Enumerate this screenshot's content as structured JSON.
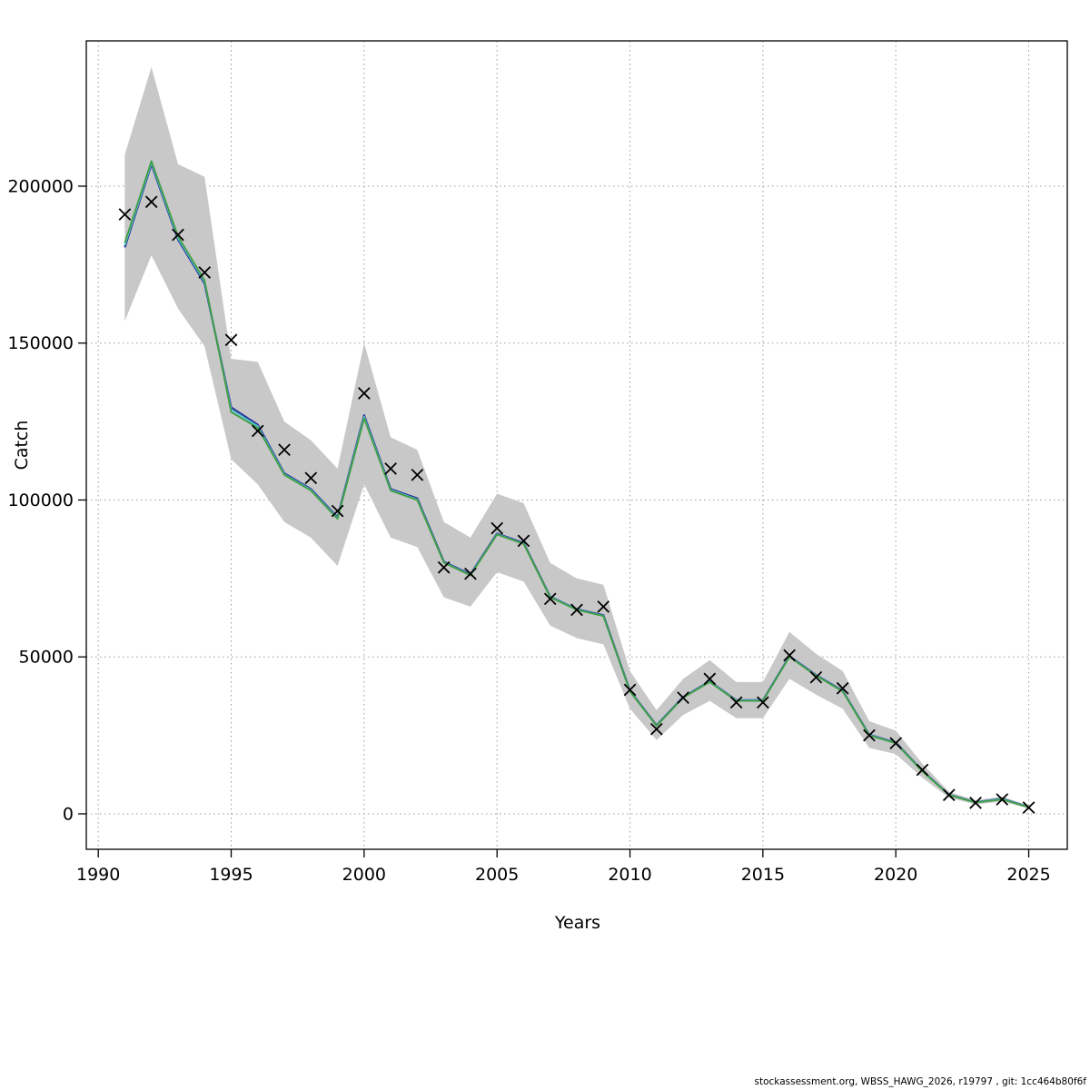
{
  "footer": {
    "text": "stockassessment.org, WBSS_HAWG_2026, r19797 , git: 1cc464b80f6f"
  },
  "chart_data": {
    "type": "line",
    "title": "",
    "xlabel": "Years",
    "ylabel": "Catch",
    "xlim": [
      1989.55,
      2026.45
    ],
    "ylim": [
      -11300,
      246300
    ],
    "x_ticks": [
      1990,
      1995,
      2000,
      2005,
      2010,
      2015,
      2020,
      2025
    ],
    "y_ticks": [
      0,
      50000,
      100000,
      150000,
      200000
    ],
    "grid": true,
    "legend": "none",
    "colors": {
      "grid": "#9a9a9a",
      "axis": "#000000",
      "marker": "#000000"
    },
    "years": [
      1991,
      1992,
      1993,
      1994,
      1995,
      1996,
      1997,
      1998,
      1999,
      2000,
      2001,
      2002,
      2003,
      2004,
      2005,
      2006,
      2007,
      2008,
      2009,
      2010,
      2011,
      2012,
      2013,
      2014,
      2015,
      2016,
      2017,
      2018,
      2019,
      2020,
      2021,
      2022,
      2023,
      2024,
      2025
    ],
    "band": {
      "name": "confidence-band",
      "color": "#c8c8c8",
      "lower": [
        157000,
        178000,
        161000,
        149000,
        113000,
        105000,
        93000,
        88000,
        79000,
        105000,
        88000,
        85000,
        69000,
        66000,
        77000,
        74000,
        60000,
        56000,
        54000,
        33500,
        23500,
        31500,
        36000,
        30500,
        30500,
        43000,
        38000,
        33500,
        21000,
        19000,
        11500,
        5100,
        3000,
        3900,
        1700
      ],
      "upper": [
        210000,
        238000,
        207000,
        203000,
        145000,
        144000,
        125000,
        119000,
        110000,
        150000,
        120000,
        116000,
        93000,
        88000,
        102000,
        99000,
        80000,
        75000,
        73000,
        45500,
        33000,
        43000,
        49000,
        42000,
        42000,
        58000,
        51000,
        45500,
        29500,
        26500,
        16000,
        7000,
        4300,
        5500,
        2600
      ]
    },
    "series": [
      {
        "name": "fit-blue",
        "type": "line",
        "color": "#27359b",
        "width": 2.2,
        "values": [
          180500,
          207000,
          183000,
          169000,
          129500,
          124000,
          108500,
          103500,
          94500,
          127000,
          103500,
          100500,
          80300,
          76300,
          89300,
          86300,
          69200,
          65200,
          63300,
          39200,
          28200,
          37200,
          42200,
          36200,
          36200,
          50200,
          44200,
          39200,
          25200,
          22700,
          13700,
          6100,
          3700,
          4800,
          2200
        ]
      },
      {
        "name": "fit-cyan",
        "type": "line",
        "color": "#5bc8d2",
        "width": 1.8,
        "values": [
          181200,
          207500,
          183500,
          169500,
          128800,
          123500,
          108200,
          103200,
          94200,
          126500,
          103200,
          100200,
          80100,
          76100,
          89100,
          86100,
          69100,
          65100,
          63100,
          39100,
          28100,
          37100,
          42100,
          36100,
          36100,
          50100,
          44100,
          39100,
          25100,
          22600,
          13600,
          6050,
          3650,
          4700,
          2150
        ]
      },
      {
        "name": "fit-green",
        "type": "line",
        "color": "#3f9e43",
        "width": 1.8,
        "values": [
          182000,
          208000,
          184000,
          170000,
          128000,
          123000,
          108000,
          103000,
          94000,
          126000,
          103000,
          100000,
          80000,
          76000,
          89000,
          86000,
          69000,
          65000,
          63000,
          39000,
          28000,
          37000,
          42000,
          36000,
          36000,
          50000,
          44000,
          39000,
          25000,
          22500,
          13500,
          6000,
          3600,
          4600,
          2100
        ]
      },
      {
        "name": "observed-catch",
        "type": "marker",
        "marker": "x",
        "color": "#000000",
        "values": [
          191000,
          195000,
          184500,
          172500,
          151000,
          122000,
          116000,
          107000,
          96500,
          134000,
          110000,
          108000,
          78500,
          76500,
          91000,
          87000,
          68500,
          65000,
          66000,
          39500,
          27000,
          37000,
          43000,
          35500,
          35500,
          50500,
          43500,
          40000,
          25000,
          22500,
          14000,
          6000,
          3500,
          4600,
          2000
        ]
      }
    ]
  }
}
